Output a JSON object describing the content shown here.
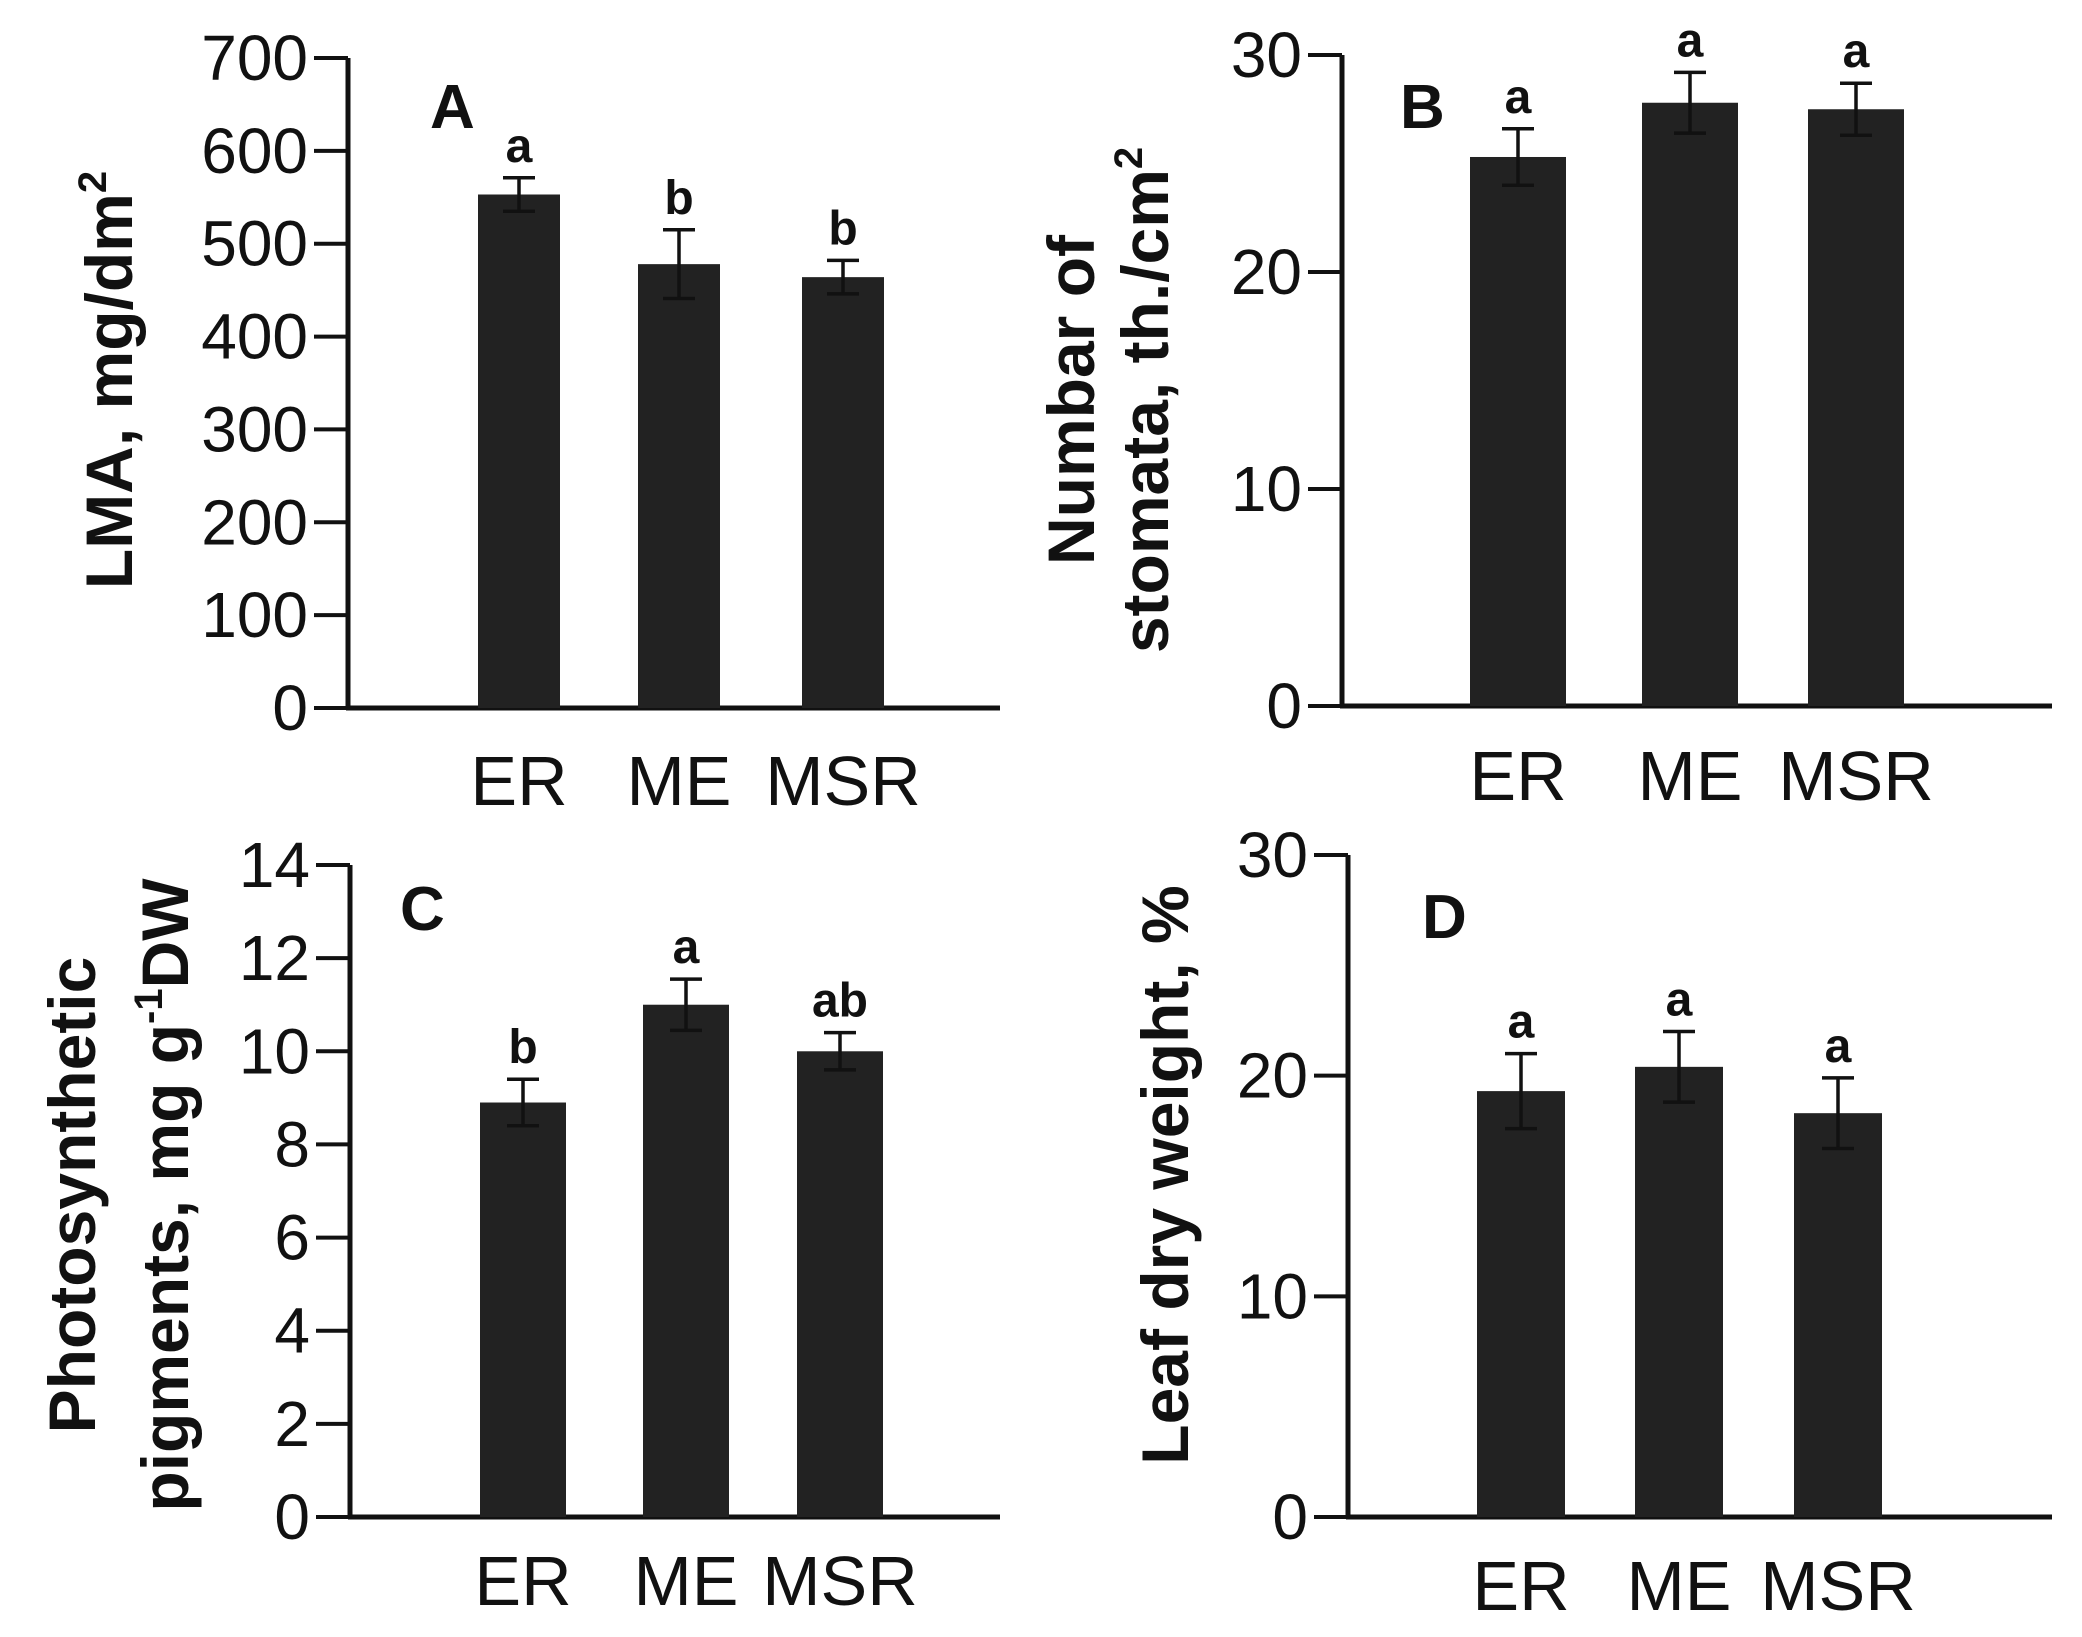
{
  "chart_data": [
    {
      "type": "bar",
      "panel": "A",
      "title": "",
      "ylabel": "LMA, mg/dm",
      "ylabel_superscript": "2",
      "xlabel": "",
      "categories": [
        "ER",
        "ME",
        "MSR"
      ],
      "values": [
        553,
        478,
        464
      ],
      "errors": [
        18,
        37,
        18
      ],
      "significance": [
        "a",
        "b",
        "b"
      ],
      "ylim": [
        0,
        700
      ],
      "yticks": [
        0,
        100,
        200,
        300,
        400,
        500,
        600,
        700
      ],
      "yticklabels": [
        "0",
        "100",
        "200",
        "300",
        "400",
        "500",
        "600",
        "700"
      ]
    },
    {
      "type": "bar",
      "panel": "B",
      "title": "",
      "ylabel_line1": "Numbar  of",
      "ylabel_line2": "stomata, th./cm",
      "ylabel_superscript": "2",
      "xlabel": "",
      "categories": [
        "ER",
        "ME",
        "MSR"
      ],
      "values": [
        25.3,
        27.8,
        27.5
      ],
      "errors": [
        1.3,
        1.4,
        1.2
      ],
      "significance": [
        "a",
        "a",
        "a"
      ],
      "ylim": [
        0,
        30
      ],
      "yticks": [
        0,
        10,
        20,
        30
      ],
      "yticklabels": [
        "0",
        "10",
        "20",
        "30"
      ]
    },
    {
      "type": "bar",
      "panel": "C",
      "title": "",
      "ylabel_line1": "Photosynthetic",
      "ylabel_line2": "pigments, mg g",
      "ylabel_superscript": "-1",
      "ylabel_suffix": "DW",
      "xlabel": "",
      "categories": [
        "ER",
        "ME",
        "MSR"
      ],
      "values": [
        8.9,
        11.0,
        10.0
      ],
      "errors": [
        0.5,
        0.55,
        0.4
      ],
      "significance": [
        "b",
        "a",
        "ab"
      ],
      "ylim": [
        0,
        14
      ],
      "yticks": [
        0,
        2,
        4,
        6,
        8,
        10,
        12,
        14
      ],
      "yticklabels": [
        "0",
        "2",
        "4",
        "6",
        "8",
        "10",
        "12",
        "14"
      ]
    },
    {
      "type": "bar",
      "panel": "D",
      "title": "",
      "ylabel": "Leaf dry weight, %",
      "xlabel": "",
      "categories": [
        "ER",
        "ME",
        "MSR"
      ],
      "values": [
        19.3,
        20.4,
        18.3
      ],
      "errors": [
        1.7,
        1.6,
        1.6
      ],
      "significance": [
        "a",
        "a",
        "a"
      ],
      "ylim": [
        0,
        30
      ],
      "yticks": [
        0,
        10,
        20,
        30
      ],
      "yticklabels": [
        "0",
        "10",
        "20",
        "30"
      ]
    }
  ],
  "colors": {
    "bar": "#222222",
    "axis": "#111111",
    "background": "#ffffff"
  }
}
